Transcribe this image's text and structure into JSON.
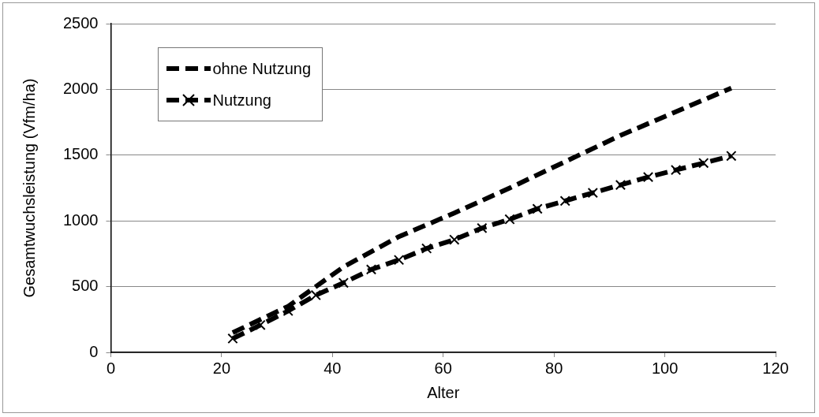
{
  "chart_data": {
    "type": "line",
    "xlabel": "Alter",
    "ylabel": "Gesamtwuchsleistung (Vfm/ha)",
    "xlim": [
      0,
      120
    ],
    "xticks": [
      0,
      20,
      40,
      60,
      80,
      100,
      120
    ],
    "ylim": [
      0,
      2500
    ],
    "yticks": [
      0,
      500,
      1000,
      1500,
      2000,
      2500
    ],
    "grid": "y",
    "legend": "top left",
    "series": [
      {
        "name": "ohne Nutzung",
        "color": "#000000",
        "marker": "none",
        "line_style": "dashed",
        "x": [
          22,
          32,
          42,
          52,
          62,
          72,
          82,
          92,
          102,
          112
        ],
        "values": [
          150,
          350,
          650,
          880,
          1060,
          1250,
          1450,
          1650,
          1830,
          2010
        ]
      },
      {
        "name": "Nutzung",
        "color": "#000000",
        "marker": "cross",
        "line_style": "dashed",
        "x": [
          22,
          27,
          32,
          37,
          42,
          47,
          52,
          57,
          62,
          67,
          72,
          77,
          82,
          87,
          92,
          97,
          102,
          107,
          112
        ],
        "values": [
          105,
          208,
          315,
          435,
          529,
          630,
          703,
          790,
          857,
          945,
          1012,
          1092,
          1152,
          1213,
          1273,
          1333,
          1387,
          1440,
          1494
        ]
      }
    ]
  }
}
